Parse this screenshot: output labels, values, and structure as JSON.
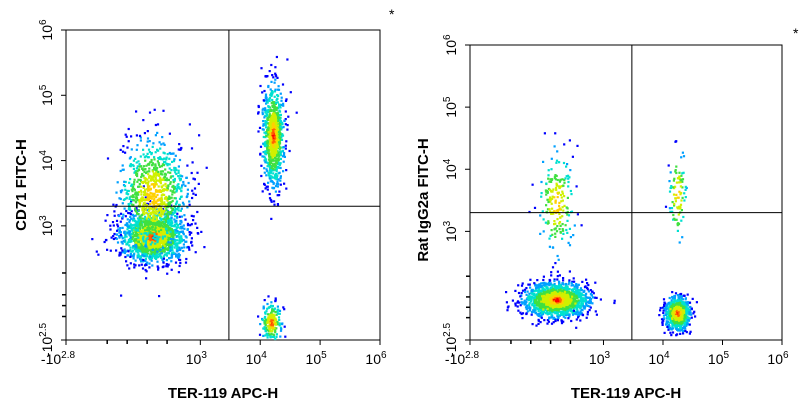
{
  "colors": {
    "density_scale": [
      "#0000ff",
      "#00a0ff",
      "#00e0d0",
      "#40e040",
      "#d0f000",
      "#ffd000",
      "#ff6000",
      "#ff0000"
    ],
    "quadrant_lines": "#000000",
    "frame": "#000000"
  },
  "chart_data": [
    {
      "type": "scatter",
      "style": "density dot plot",
      "marker": "*",
      "xlabel": "TER-119 APC-H",
      "ylabel": "CD71 FITC-H",
      "x_scale": "biexponential",
      "y_scale": "biexponential",
      "xlim": [
        -630,
        1000000
      ],
      "ylim": [
        -316,
        1000000
      ],
      "x_ticks": [
        {
          "base": "-10",
          "exp": "2.8",
          "value": -630
        },
        {
          "base": "10",
          "exp": "3",
          "value": 1000
        },
        {
          "base": "10",
          "exp": "4",
          "value": 10000
        },
        {
          "base": "10",
          "exp": "5",
          "value": 100000
        },
        {
          "base": "10",
          "exp": "6",
          "value": 1000000
        }
      ],
      "y_ticks": [
        {
          "base": "-10",
          "exp": "2.5",
          "value": -316
        },
        {
          "base": "10",
          "exp": "3",
          "value": 1000
        },
        {
          "base": "10",
          "exp": "4",
          "value": 10000
        },
        {
          "base": "10",
          "exp": "5",
          "value": 100000
        },
        {
          "base": "10",
          "exp": "6",
          "value": 1000000
        }
      ],
      "quadrant_gate": {
        "x": 3000,
        "y": 2000
      },
      "populations": [
        {
          "name": "",
          "x_center": 250,
          "y_center": 700,
          "x_spread": 0.9,
          "y_spread": 0.45,
          "n": 1400,
          "core_n": 350
        },
        {
          "name": "",
          "x_center": 250,
          "y_center": 3000,
          "x_spread": 0.9,
          "y_spread": 1.0,
          "n": 900,
          "core_n": 0
        },
        {
          "name": "",
          "x_center": 16000,
          "y_center": 25000,
          "x_spread": 0.3,
          "y_spread": 0.9,
          "n": 800,
          "core_n": 200
        },
        {
          "name": "",
          "x_center": 15000,
          "y_center": -150,
          "x_spread": 0.3,
          "y_spread": 0.35,
          "n": 180,
          "core_n": 40
        }
      ]
    },
    {
      "type": "scatter",
      "style": "density dot plot",
      "marker": "*",
      "xlabel": "TER-119 APC-H",
      "ylabel": "Rat IgG2a FITC-H",
      "x_scale": "biexponential",
      "y_scale": "biexponential",
      "xlim": [
        -630,
        1000000
      ],
      "ylim": [
        -316,
        1000000
      ],
      "x_ticks": [
        {
          "base": "-10",
          "exp": "2.8",
          "value": -630
        },
        {
          "base": "10",
          "exp": "3",
          "value": 1000
        },
        {
          "base": "10",
          "exp": "4",
          "value": 10000
        },
        {
          "base": "10",
          "exp": "5",
          "value": 100000
        },
        {
          "base": "10",
          "exp": "6",
          "value": 1000000
        }
      ],
      "y_ticks": [
        {
          "base": "-10",
          "exp": "2.5",
          "value": -316
        },
        {
          "base": "10",
          "exp": "3",
          "value": 1000
        },
        {
          "base": "10",
          "exp": "4",
          "value": 10000
        },
        {
          "base": "10",
          "exp": "5",
          "value": 100000
        },
        {
          "base": "10",
          "exp": "6",
          "value": 1000000
        }
      ],
      "quadrant_gate": {
        "x": 3000,
        "y": 2000
      },
      "populations": [
        {
          "name": "",
          "x_center": 250,
          "y_center": 80,
          "x_spread": 0.9,
          "y_spread": 0.3,
          "n": 1500,
          "core_n": 400
        },
        {
          "name": "",
          "x_center": 250,
          "y_center": 3000,
          "x_spread": 0.5,
          "y_spread": 0.9,
          "n": 200,
          "core_n": 0
        },
        {
          "name": "",
          "x_center": 17000,
          "y_center": -50,
          "x_spread": 0.35,
          "y_spread": 0.3,
          "n": 700,
          "core_n": 200
        },
        {
          "name": "",
          "x_center": 17000,
          "y_center": 4000,
          "x_spread": 0.25,
          "y_spread": 0.8,
          "n": 90,
          "core_n": 0
        }
      ]
    }
  ]
}
